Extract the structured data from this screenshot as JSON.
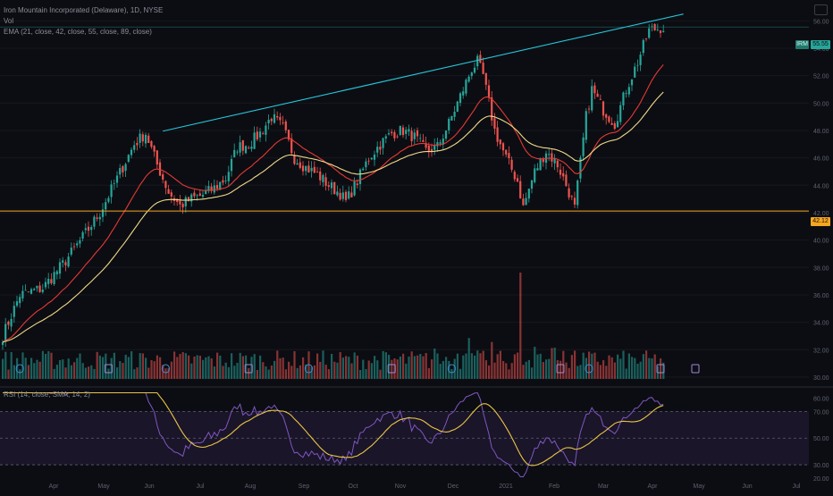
{
  "header": {
    "symbol_line": "Iron Mountain Incorporated (Delaware), 1D, NYSE",
    "vol_label": "Vol",
    "ema_line": "EMA (21, close, 42, close, 55, close, 89, close)",
    "rsi_line": "RSI (14, close, SMA, 14, 2)"
  },
  "colors": {
    "background": "#0c0d12",
    "up": "#26a69a",
    "down": "#ef5350",
    "ema_fast": "#e53935",
    "ema_slow": "#f0d98a",
    "trendline": "#26c6da",
    "support": "#f5a623",
    "rsi": "#7e57c2",
    "rsi_ma": "#e8c547"
  },
  "price_tags": {
    "current_symbol": "IRM",
    "current_price": "55.55",
    "support_price": "42.12"
  },
  "chart_data": [
    {
      "type": "candlestick",
      "title": "",
      "x_labels": [
        "Apr",
        "May",
        "Jun",
        "Jul",
        "Aug",
        "Sep",
        "Oct",
        "Nov",
        "Dec",
        "2021",
        "Feb",
        "Mar",
        "Apr",
        "May",
        "Jun",
        "Jul"
      ],
      "y_tick_labels": [
        "30.00",
        "32.00",
        "34.00",
        "36.00",
        "38.00",
        "40.00",
        "42.00",
        "44.00",
        "46.00",
        "48.00",
        "50.00",
        "52.00",
        "54.00",
        "56.00"
      ],
      "ylim": [
        29.8,
        57.0
      ],
      "anchors": [
        [
          0,
          33.0
        ],
        [
          6,
          36.0
        ],
        [
          14,
          36.5
        ],
        [
          22,
          38.5
        ],
        [
          28,
          40.2
        ],
        [
          34,
          42.0
        ],
        [
          40,
          44.5
        ],
        [
          46,
          47.0
        ],
        [
          50,
          47.8
        ],
        [
          54,
          45.5
        ],
        [
          58,
          43.5
        ],
        [
          62,
          42.5
        ],
        [
          66,
          43.0
        ],
        [
          70,
          43.3
        ],
        [
          74,
          43.8
        ],
        [
          78,
          44.5
        ],
        [
          82,
          46.8
        ],
        [
          86,
          47.0
        ],
        [
          90,
          47.8
        ],
        [
          94,
          49.0
        ],
        [
          98,
          48.2
        ],
        [
          102,
          46.0
        ],
        [
          106,
          45.3
        ],
        [
          110,
          44.8
        ],
        [
          114,
          44.0
        ],
        [
          118,
          43.4
        ],
        [
          120,
          42.8
        ],
        [
          124,
          44.3
        ],
        [
          128,
          46.0
        ],
        [
          132,
          47.0
        ],
        [
          136,
          47.8
        ],
        [
          140,
          48.0
        ],
        [
          144,
          47.5
        ],
        [
          148,
          46.5
        ],
        [
          152,
          46.8
        ],
        [
          156,
          48.5
        ],
        [
          160,
          50.5
        ],
        [
          164,
          52.5
        ],
        [
          166,
          53.0
        ],
        [
          168,
          52.0
        ],
        [
          172,
          48.0
        ],
        [
          176,
          46.0
        ],
        [
          180,
          44.3
        ],
        [
          182,
          42.4
        ],
        [
          186,
          45.0
        ],
        [
          190,
          46.5
        ],
        [
          194,
          45.5
        ],
        [
          198,
          43.5
        ],
        [
          200,
          42.3
        ],
        [
          204,
          49.0
        ],
        [
          206,
          51.0
        ],
        [
          210,
          49.5
        ],
        [
          214,
          48.5
        ],
        [
          218,
          51.0
        ],
        [
          222,
          53.0
        ],
        [
          226,
          55.3
        ],
        [
          230,
          55.5
        ]
      ],
      "support_level": 42.12,
      "trendline": [
        [
          56,
          47.95
        ],
        [
          238,
          56.5
        ]
      ],
      "volume_spike_day": 181,
      "earnings_markers_days": [
        6,
        37,
        57,
        86,
        107,
        136,
        157,
        195,
        205,
        230
      ]
    },
    {
      "type": "line",
      "title": "RSI",
      "y_tick_labels": [
        "80.00",
        "70.00",
        "50.00",
        "30.00",
        "20.00"
      ],
      "bands": [
        30,
        50,
        70
      ],
      "ylim": [
        20,
        85
      ]
    }
  ]
}
